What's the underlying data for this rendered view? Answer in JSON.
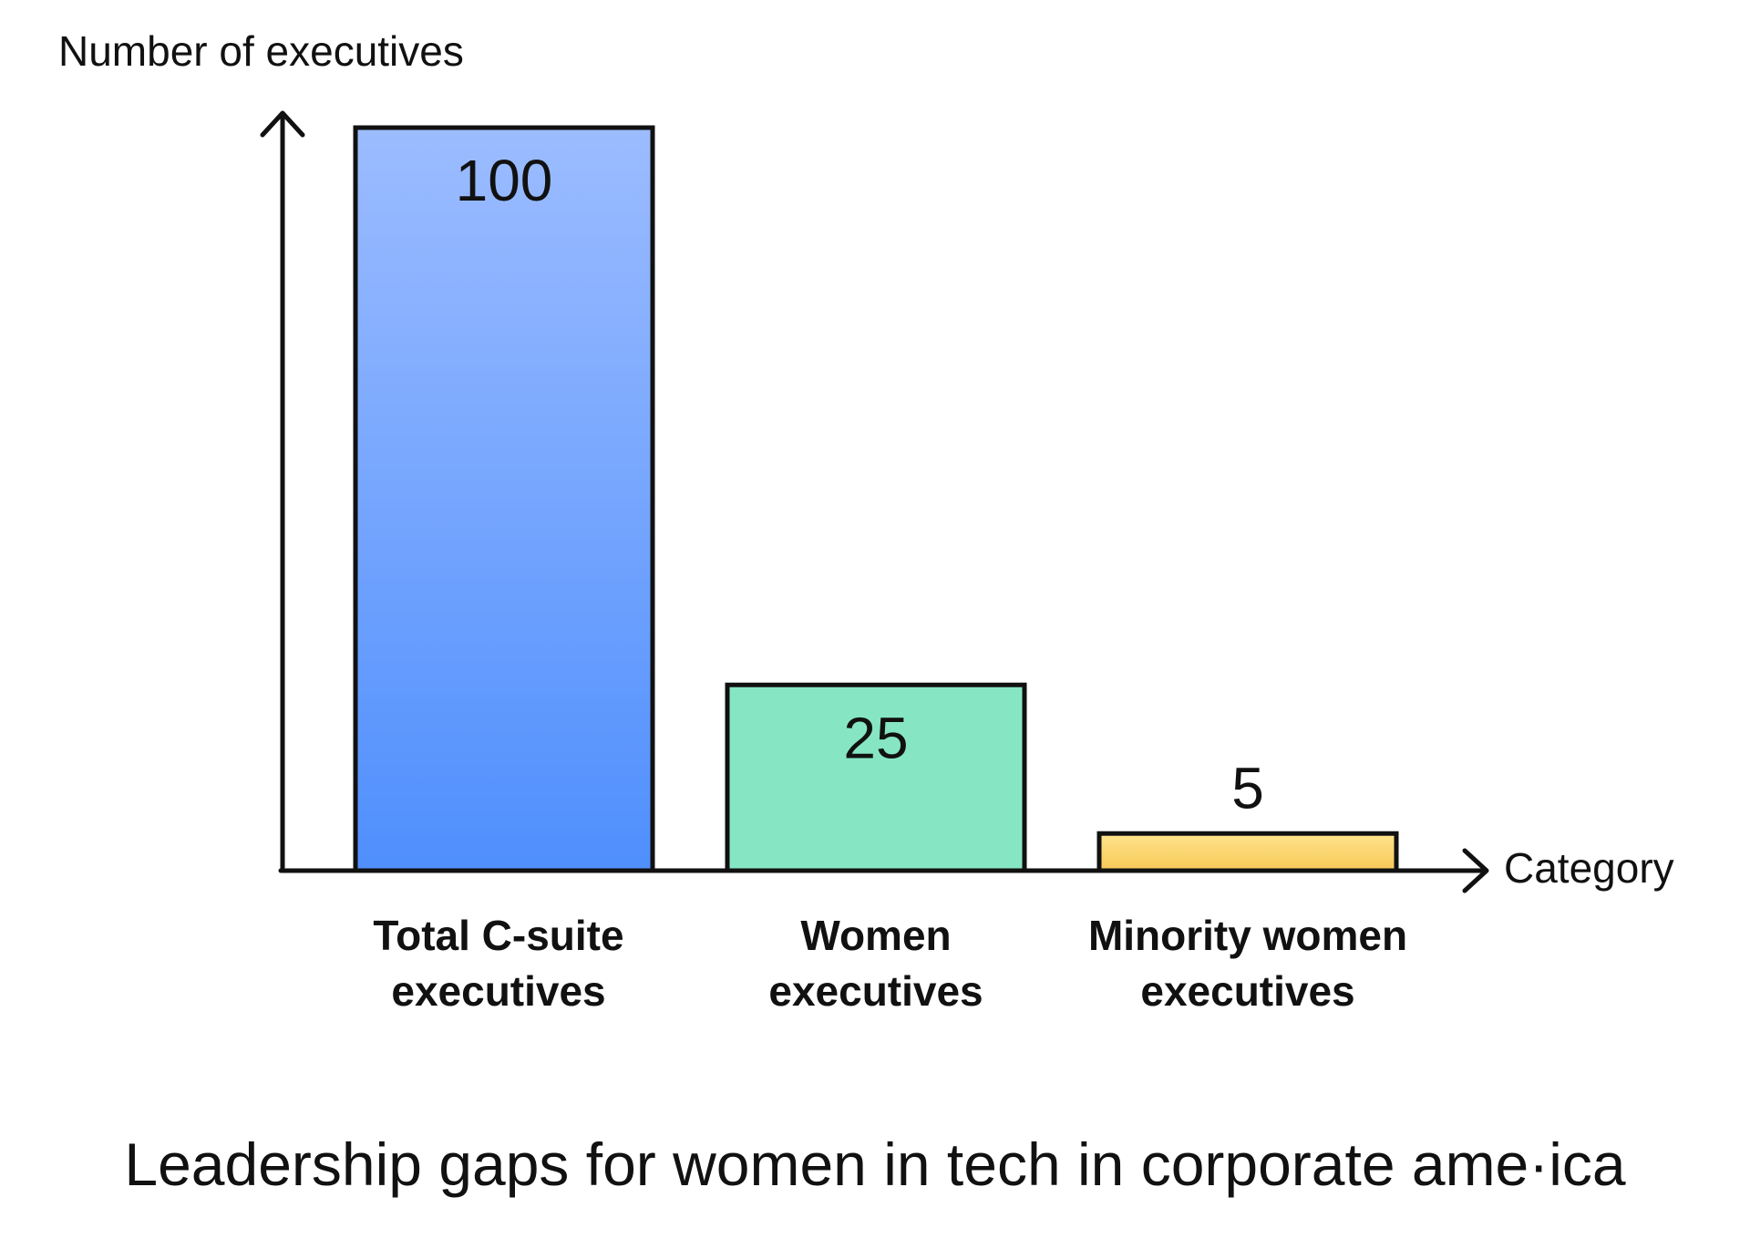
{
  "chart_data": {
    "type": "bar",
    "title": "Leadership gaps for women in tech in corporate ame·ica",
    "ylabel": "Number of executives",
    "xlabel": "Category",
    "categories": [
      [
        "Total C-suite",
        "executives"
      ],
      [
        "Women",
        "executives"
      ],
      [
        "Minority women",
        "executives"
      ]
    ],
    "values": [
      100,
      25,
      5
    ],
    "value_labels": [
      "100",
      "25",
      "5"
    ],
    "ylim": [
      0,
      100
    ],
    "grid": false,
    "legend": "none",
    "bar_colors": [
      {
        "top": "#9cbcff",
        "bottom": "#4f8ffd"
      },
      {
        "top": "#86e6c4",
        "bottom": "#86e6c4"
      },
      {
        "top": "#ffe38c",
        "bottom": "#f7c957"
      }
    ]
  },
  "colors": {
    "axis": "#111111",
    "text": "#111111",
    "bar_stroke": "#111111",
    "background": "#ffffff"
  }
}
